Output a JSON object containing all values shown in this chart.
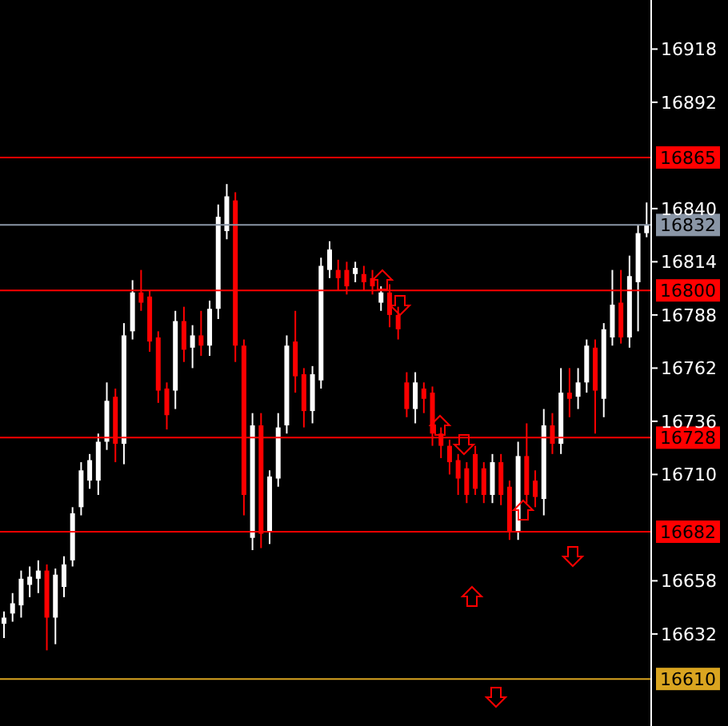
{
  "chart_data": {
    "type": "candlestick",
    "categories": [
      null,
      null,
      null,
      null,
      null,
      null,
      null,
      null,
      null,
      null,
      null,
      null,
      null,
      null,
      null,
      null,
      null,
      null,
      null,
      null,
      null,
      null,
      null,
      null,
      null,
      null,
      null,
      null,
      null,
      null,
      null,
      null,
      null,
      null,
      null,
      null,
      null,
      null,
      null,
      null,
      null,
      null,
      null,
      null,
      null,
      null,
      null,
      null,
      null,
      null,
      null,
      null,
      null,
      null,
      null,
      null,
      null,
      null,
      null,
      null,
      null,
      null,
      null,
      null,
      null,
      null,
      null,
      null,
      null,
      null,
      null,
      null,
      null,
      null,
      null,
      null
    ],
    "ohlc": [
      [
        16637,
        16643,
        16630,
        16640
      ],
      [
        16642,
        16652,
        16638,
        16647
      ],
      [
        16646,
        16663,
        16640,
        16659
      ],
      [
        16656,
        16665,
        16650,
        16660
      ],
      [
        16659,
        16668,
        16652,
        16663
      ],
      [
        16663,
        16666,
        16624,
        16640
      ],
      [
        16640,
        16664,
        16627,
        16661
      ],
      [
        16655,
        16670,
        16650,
        16666
      ],
      [
        16668,
        16694,
        16665,
        16691
      ],
      [
        16694,
        16716,
        16690,
        16712
      ],
      [
        16707,
        16720,
        16703,
        16717
      ],
      [
        16707,
        16730,
        16700,
        16726
      ],
      [
        16726,
        16755,
        16722,
        16746
      ],
      [
        16748,
        16752,
        16716,
        16725
      ],
      [
        16725,
        16784,
        16715,
        16778
      ],
      [
        16780,
        16805,
        16776,
        16799
      ],
      [
        16799,
        16810,
        16790,
        16794
      ],
      [
        16797,
        16800,
        16770,
        16775
      ],
      [
        16777,
        16780,
        16745,
        16751
      ],
      [
        16752,
        16755,
        16732,
        16739
      ],
      [
        16751,
        16790,
        16742,
        16785
      ],
      [
        16785,
        16792,
        16765,
        16771
      ],
      [
        16772,
        16783,
        16762,
        16778
      ],
      [
        16778,
        16790,
        16768,
        16773
      ],
      [
        16773,
        16795,
        16768,
        16791
      ],
      [
        16791,
        16842,
        16786,
        16836
      ],
      [
        16829,
        16852,
        16825,
        16846
      ],
      [
        16844,
        16848,
        16765,
        16773
      ],
      [
        16773,
        16776,
        16690,
        16700
      ],
      [
        16679,
        16740,
        16673,
        16734
      ],
      [
        16734,
        16740,
        16674,
        16681
      ],
      [
        16682,
        16712,
        16676,
        16709
      ],
      [
        16708,
        16740,
        16704,
        16733
      ],
      [
        16734,
        16778,
        16730,
        16773
      ],
      [
        16775,
        16790,
        16750,
        16758
      ],
      [
        16759,
        16762,
        16733,
        16741
      ],
      [
        16741,
        16763,
        16735,
        16759
      ],
      [
        16756,
        16816,
        16752,
        16812
      ],
      [
        16810,
        16824,
        16806,
        16820
      ],
      [
        16810,
        16815,
        16800,
        16806
      ],
      [
        16810,
        16814,
        16798,
        16802
      ],
      [
        16808,
        16814,
        16804,
        16811
      ],
      [
        16808,
        16812,
        16800,
        16804
      ],
      [
        16806,
        16810,
        16798,
        16802
      ],
      [
        16794,
        16802,
        16790,
        16799
      ],
      [
        16799,
        16803,
        16782,
        16788
      ],
      [
        16788,
        16792,
        16776,
        16781
      ],
      [
        16755,
        16760,
        16738,
        16742
      ],
      [
        16742,
        16760,
        16735,
        16755
      ],
      [
        16752,
        16755,
        16740,
        16747
      ],
      [
        16750,
        16753,
        16724,
        16730
      ],
      [
        16730,
        16733,
        16718,
        16724
      ],
      [
        16724,
        16727,
        16710,
        16716
      ],
      [
        16717,
        16720,
        16700,
        16708
      ],
      [
        16713,
        16716,
        16696,
        16700
      ],
      [
        16720,
        16724,
        16700,
        16703
      ],
      [
        16713,
        16716,
        16696,
        16700
      ],
      [
        16700,
        16720,
        16696,
        16716
      ],
      [
        16716,
        16720,
        16695,
        16700
      ],
      [
        16704,
        16707,
        16678,
        16682
      ],
      [
        16682,
        16726,
        16678,
        16719
      ],
      [
        16719,
        16735,
        16696,
        16700
      ],
      [
        16707,
        16712,
        16694,
        16699
      ],
      [
        16698,
        16742,
        16690,
        16734
      ],
      [
        16734,
        16740,
        16720,
        16725
      ],
      [
        16725,
        16762,
        16720,
        16750
      ],
      [
        16750,
        16762,
        16738,
        16747
      ],
      [
        16748,
        16762,
        16742,
        16755
      ],
      [
        16755,
        16776,
        16750,
        16773
      ],
      [
        16772,
        16776,
        16730,
        16751
      ],
      [
        16747,
        16784,
        16738,
        16781
      ],
      [
        16777,
        16810,
        16773,
        16793
      ],
      [
        16794,
        16810,
        16774,
        16777
      ],
      [
        16777,
        16817,
        16772,
        16807
      ],
      [
        16804,
        16832,
        16780,
        16828
      ],
      [
        16828,
        16843,
        16826,
        16832
      ]
    ],
    "colors": [
      "#ffffff",
      "#ffffff",
      "#ffffff",
      "#ffffff",
      "#ffffff",
      "#ff0000",
      "#ffffff",
      "#ffffff",
      "#ffffff",
      "#ffffff",
      "#ffffff",
      "#ffffff",
      "#ffffff",
      "#ff0000",
      "#ffffff",
      "#ffffff",
      "#ff0000",
      "#ff0000",
      "#ff0000",
      "#ff0000",
      "#ffffff",
      "#ff0000",
      "#ffffff",
      "#ff0000",
      "#ffffff",
      "#ffffff",
      "#ffffff",
      "#ff0000",
      "#ff0000",
      "#ffffff",
      "#ff0000",
      "#ffffff",
      "#ffffff",
      "#ffffff",
      "#ff0000",
      "#ff0000",
      "#ffffff",
      "#ffffff",
      "#ffffff",
      "#ff0000",
      "#ff0000",
      "#ffffff",
      "#ff0000",
      "#ff0000",
      "#ffffff",
      "#ff0000",
      "#ff0000",
      "#ff0000",
      "#ffffff",
      "#ff0000",
      "#ff0000",
      "#ff0000",
      "#ff0000",
      "#ff0000",
      "#ff0000",
      "#ff0000",
      "#ff0000",
      "#ffffff",
      "#ff0000",
      "#ff0000",
      "#ffffff",
      "#ff0000",
      "#ff0000",
      "#ffffff",
      "#ff0000",
      "#ffffff",
      "#ff0000",
      "#ffffff",
      "#ffffff",
      "#ff0000",
      "#ffffff",
      "#ffffff",
      "#ff0000",
      "#ffffff",
      "#ffffff",
      "#ffffff"
    ],
    "ylim": [
      16587,
      16942
    ],
    "yticks": [
      16632,
      16658,
      16710,
      16736,
      16762,
      16788,
      16814,
      16840,
      16892,
      16918
    ],
    "ref_lines": [
      {
        "axis": "y",
        "value": 16865,
        "label": "16865",
        "color": "#ff0000"
      },
      {
        "axis": "y",
        "value": 16832,
        "label": "16832",
        "color": "#8a96a6"
      },
      {
        "axis": "y",
        "value": 16800,
        "label": "16800",
        "color": "#ff0000"
      },
      {
        "axis": "y",
        "value": 16728,
        "label": "16728",
        "color": "#ff0000"
      },
      {
        "axis": "y",
        "value": 16682,
        "label": "16682",
        "color": "#ff0000"
      },
      {
        "axis": "y",
        "value": 16610,
        "label": "16610",
        "color": "#daa520"
      }
    ],
    "tick_labels": "y",
    "grid": false,
    "legend": false
  }
}
